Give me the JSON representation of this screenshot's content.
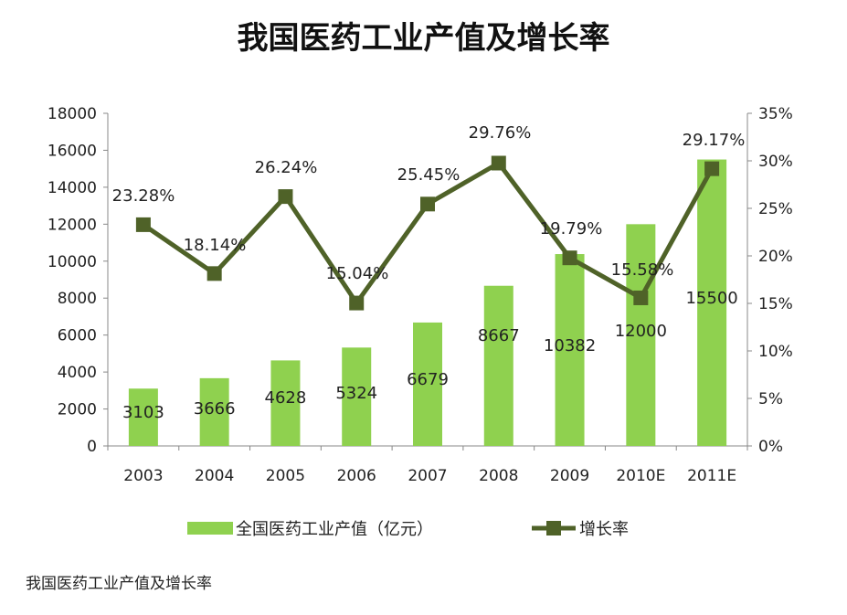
{
  "chart_data": {
    "type": "bar+line",
    "title": "我国医药工业产值及增长率",
    "caption": "我国医药工业产值及增长率",
    "categories": [
      "2003",
      "2004",
      "2005",
      "2006",
      "2007",
      "2008",
      "2009",
      "2010E",
      "2011E"
    ],
    "series": [
      {
        "name": "全国医药工业产值（亿元）",
        "type": "bar",
        "axis": "left",
        "color": "#8fd14f",
        "values": [
          3103,
          3666,
          4628,
          5324,
          6679,
          8667,
          10382,
          12000,
          15500
        ],
        "labels": [
          "3103",
          "3666",
          "4628",
          "5324",
          "6679",
          "8667",
          "10382",
          "12000",
          "15500"
        ]
      },
      {
        "name": "增长率",
        "type": "line",
        "axis": "right",
        "color": "#4f6228",
        "values": [
          23.28,
          18.14,
          26.24,
          15.04,
          25.45,
          29.76,
          19.79,
          15.58,
          29.17
        ],
        "labels": [
          "23.28%",
          "18.14%",
          "26.24%",
          "15.04%",
          "25.45%",
          "29.76%",
          "19.79%",
          "15.58%",
          "29.17%"
        ]
      }
    ],
    "left_axis": {
      "ylim": [
        0,
        18000
      ],
      "ticks": [
        "0",
        "2000",
        "4000",
        "6000",
        "8000",
        "10000",
        "12000",
        "14000",
        "16000",
        "18000"
      ]
    },
    "right_axis": {
      "ylim": [
        0,
        35
      ],
      "ticks": [
        "0%",
        "5%",
        "10%",
        "15%",
        "20%",
        "25%",
        "30%",
        "35%"
      ]
    },
    "legend": "bottom",
    "grid": false
  }
}
